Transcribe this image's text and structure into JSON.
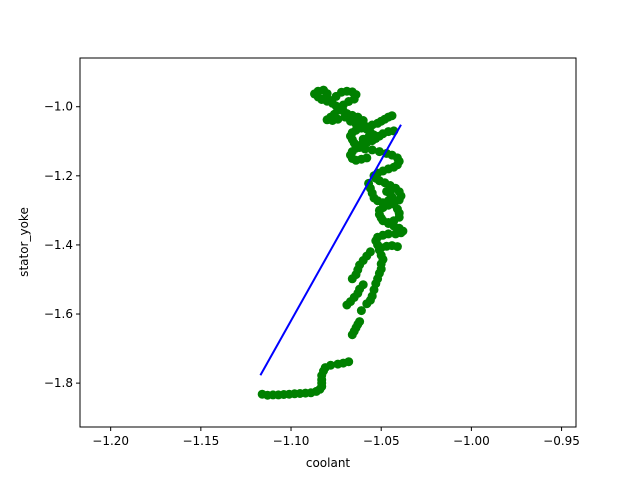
{
  "chart_data": {
    "type": "scatter",
    "title": "",
    "xlabel": "coolant",
    "ylabel": "stator_yoke",
    "xlim": [
      -1.217,
      -0.942
    ],
    "ylim": [
      -1.927,
      -0.859
    ],
    "x_ticks": [
      -1.2,
      -1.15,
      -1.1,
      -1.05,
      -1.0,
      -0.95
    ],
    "x_tick_labels": [
      "−1.20",
      "−1.15",
      "−1.10",
      "−1.05",
      "−1.00",
      "−0.95"
    ],
    "y_ticks": [
      -1.8,
      -1.6,
      -1.4,
      -1.2,
      -1.0
    ],
    "y_tick_labels": [
      "−1.8",
      "−1.6",
      "−1.4",
      "−1.2",
      "−1.0"
    ],
    "grid": false,
    "legend": "none",
    "series": [
      {
        "kind": "scatter",
        "color": "#008000",
        "points": [
          [
            -1.116,
            -1.832
          ],
          [
            -1.113,
            -1.835
          ],
          [
            -1.11,
            -1.834
          ],
          [
            -1.107,
            -1.834
          ],
          [
            -1.104,
            -1.833
          ],
          [
            -1.101,
            -1.832
          ],
          [
            -1.098,
            -1.831
          ],
          [
            -1.095,
            -1.83
          ],
          [
            -1.092,
            -1.829
          ],
          [
            -1.089,
            -1.828
          ],
          [
            -1.086,
            -1.824
          ],
          [
            -1.084,
            -1.818
          ],
          [
            -1.083,
            -1.81
          ],
          [
            -1.083,
            -1.8
          ],
          [
            -1.083,
            -1.79
          ],
          [
            -1.083,
            -1.778
          ],
          [
            -1.082,
            -1.765
          ],
          [
            -1.081,
            -1.755
          ],
          [
            -1.078,
            -1.748
          ],
          [
            -1.074,
            -1.745
          ],
          [
            -1.071,
            -1.742
          ],
          [
            -1.068,
            -1.738
          ],
          [
            -1.066,
            -1.66
          ],
          [
            -1.065,
            -1.65
          ],
          [
            -1.064,
            -1.64
          ],
          [
            -1.063,
            -1.63
          ],
          [
            -1.062,
            -1.622
          ],
          [
            -1.061,
            -1.59
          ],
          [
            -1.058,
            -1.57
          ],
          [
            -1.056,
            -1.56
          ],
          [
            -1.055,
            -1.548
          ],
          [
            -1.054,
            -1.53
          ],
          [
            -1.053,
            -1.512
          ],
          [
            -1.052,
            -1.498
          ],
          [
            -1.051,
            -1.482
          ],
          [
            -1.05,
            -1.47
          ],
          [
            -1.05,
            -1.455
          ],
          [
            -1.049,
            -1.442
          ],
          [
            -1.05,
            -1.43
          ],
          [
            -1.051,
            -1.415
          ],
          [
            -1.052,
            -1.4
          ],
          [
            -1.053,
            -1.388
          ],
          [
            -1.052,
            -1.378
          ],
          [
            -1.049,
            -1.372
          ],
          [
            -1.046,
            -1.368
          ],
          [
            -1.042,
            -1.368
          ],
          [
            -1.039,
            -1.365
          ],
          [
            -1.038,
            -1.36
          ],
          [
            -1.04,
            -1.352
          ],
          [
            -1.043,
            -1.345
          ],
          [
            -1.046,
            -1.338
          ],
          [
            -1.049,
            -1.33
          ],
          [
            -1.05,
            -1.322
          ],
          [
            -1.051,
            -1.312
          ],
          [
            -1.051,
            -1.3
          ],
          [
            -1.049,
            -1.292
          ],
          [
            -1.046,
            -1.285
          ],
          [
            -1.043,
            -1.282
          ],
          [
            -1.041,
            -1.296
          ],
          [
            -1.04,
            -1.308
          ],
          [
            -1.04,
            -1.32
          ],
          [
            -1.043,
            -1.33
          ],
          [
            -1.046,
            -1.335
          ],
          [
            -1.04,
            -1.27
          ],
          [
            -1.039,
            -1.258
          ],
          [
            -1.04,
            -1.246
          ],
          [
            -1.042,
            -1.236
          ],
          [
            -1.045,
            -1.228
          ],
          [
            -1.048,
            -1.22
          ],
          [
            -1.051,
            -1.214
          ],
          [
            -1.053,
            -1.207
          ],
          [
            -1.054,
            -1.2
          ],
          [
            -1.052,
            -1.192
          ],
          [
            -1.049,
            -1.186
          ],
          [
            -1.046,
            -1.18
          ],
          [
            -1.043,
            -1.175
          ],
          [
            -1.041,
            -1.168
          ],
          [
            -1.04,
            -1.158
          ],
          [
            -1.041,
            -1.148
          ],
          [
            -1.044,
            -1.14
          ],
          [
            -1.047,
            -1.135
          ],
          [
            -1.051,
            -1.13
          ],
          [
            -1.055,
            -1.125
          ],
          [
            -1.059,
            -1.122
          ],
          [
            -1.062,
            -1.118
          ],
          [
            -1.064,
            -1.112
          ],
          [
            -1.065,
            -1.105
          ],
          [
            -1.066,
            -1.095
          ],
          [
            -1.067,
            -1.085
          ],
          [
            -1.066,
            -1.075
          ],
          [
            -1.064,
            -1.068
          ],
          [
            -1.061,
            -1.062
          ],
          [
            -1.058,
            -1.058
          ],
          [
            -1.055,
            -1.053
          ],
          [
            -1.052,
            -1.048
          ],
          [
            -1.05,
            -1.042
          ],
          [
            -1.048,
            -1.036
          ],
          [
            -1.046,
            -1.03
          ],
          [
            -1.044,
            -1.026
          ],
          [
            -1.043,
            -1.07
          ],
          [
            -1.046,
            -1.072
          ],
          [
            -1.049,
            -1.078
          ],
          [
            -1.051,
            -1.085
          ],
          [
            -1.053,
            -1.092
          ],
          [
            -1.055,
            -1.098
          ],
          [
            -1.058,
            -1.104
          ],
          [
            -1.061,
            -1.11
          ],
          [
            -1.064,
            -1.12
          ],
          [
            -1.066,
            -1.13
          ],
          [
            -1.067,
            -1.14
          ],
          [
            -1.066,
            -1.15
          ],
          [
            -1.064,
            -1.155
          ],
          [
            -1.061,
            -1.152
          ],
          [
            -1.058,
            -1.148
          ],
          [
            -1.06,
            -1.04
          ],
          [
            -1.063,
            -1.03
          ],
          [
            -1.066,
            -1.025
          ],
          [
            -1.069,
            -1.02
          ],
          [
            -1.071,
            -1.012
          ],
          [
            -1.073,
            -1.005
          ],
          [
            -1.075,
            -0.998
          ],
          [
            -1.077,
            -0.99
          ],
          [
            -1.08,
            -0.984
          ],
          [
            -1.083,
            -0.979
          ],
          [
            -1.085,
            -0.972
          ],
          [
            -1.087,
            -0.963
          ],
          [
            -1.085,
            -0.955
          ],
          [
            -1.082,
            -0.952
          ],
          [
            -1.08,
            -0.962
          ],
          [
            -1.081,
            -0.975
          ],
          [
            -1.078,
            -0.982
          ],
          [
            -1.075,
            -0.97
          ],
          [
            -1.072,
            -0.958
          ],
          [
            -1.069,
            -0.955
          ],
          [
            -1.066,
            -0.957
          ],
          [
            -1.064,
            -0.965
          ],
          [
            -1.065,
            -0.978
          ],
          [
            -1.068,
            -0.985
          ],
          [
            -1.071,
            -0.995
          ],
          [
            -1.074,
            -1.01
          ],
          [
            -1.076,
            -1.022
          ],
          [
            -1.078,
            -1.03
          ],
          [
            -1.08,
            -1.038
          ],
          [
            -1.077,
            -1.04
          ],
          [
            -1.074,
            -1.036
          ],
          [
            -1.07,
            -1.03
          ],
          [
            -1.067,
            -1.042
          ],
          [
            -1.064,
            -1.05
          ],
          [
            -1.061,
            -1.058
          ],
          [
            -1.058,
            -1.065
          ],
          [
            -1.056,
            -1.074
          ],
          [
            -1.054,
            -1.082
          ],
          [
            -1.057,
            -1.088
          ],
          [
            -1.06,
            -1.094
          ],
          [
            -1.047,
            -1.245
          ],
          [
            -1.045,
            -1.252
          ],
          [
            -1.044,
            -1.262
          ],
          [
            -1.046,
            -1.272
          ],
          [
            -1.049,
            -1.278
          ],
          [
            -1.052,
            -1.272
          ],
          [
            -1.054,
            -1.264
          ],
          [
            -1.055,
            -1.25
          ],
          [
            -1.056,
            -1.236
          ],
          [
            -1.057,
            -1.222
          ],
          [
            -1.05,
            -1.408
          ],
          [
            -1.047,
            -1.404
          ],
          [
            -1.044,
            -1.402
          ],
          [
            -1.041,
            -1.405
          ],
          [
            -1.056,
            -1.42
          ],
          [
            -1.058,
            -1.432
          ],
          [
            -1.06,
            -1.445
          ],
          [
            -1.062,
            -1.458
          ],
          [
            -1.063,
            -1.472
          ],
          [
            -1.064,
            -1.486
          ],
          [
            -1.066,
            -1.498
          ],
          [
            -1.06,
            -1.515
          ],
          [
            -1.062,
            -1.528
          ],
          [
            -1.063,
            -1.54
          ],
          [
            -1.065,
            -1.552
          ],
          [
            -1.067,
            -1.564
          ],
          [
            -1.069,
            -1.574
          ]
        ]
      },
      {
        "kind": "line",
        "color": "#0000ff",
        "points": [
          [
            -1.117,
            -1.777
          ],
          [
            -1.039,
            -1.052
          ]
        ]
      }
    ]
  }
}
